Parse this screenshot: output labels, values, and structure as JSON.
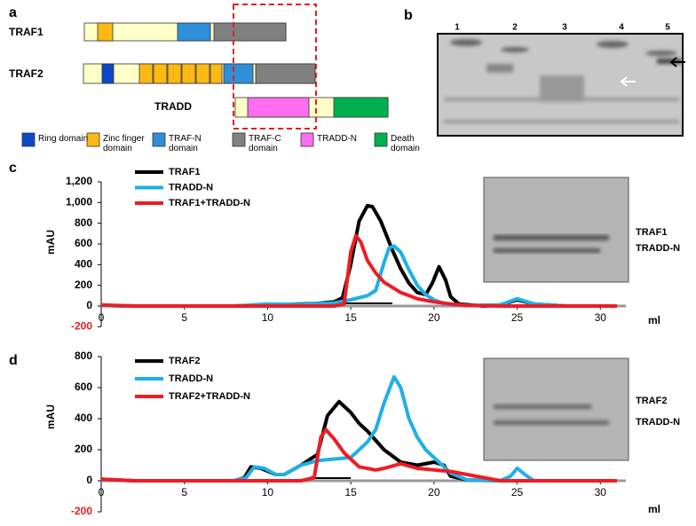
{
  "panel_a": {
    "label": "a",
    "rows": [
      "TRAF1",
      "TRAF2",
      "TRADD"
    ],
    "legend": [
      "Ring domain",
      "Zinc finger domain",
      "TRAF-N domain",
      "TRAF-C domain",
      "TRADD-N",
      "Death domain"
    ]
  },
  "panel_b": {
    "label": "b",
    "lanes": [
      1,
      2,
      3,
      4,
      5
    ]
  },
  "chart_data": [
    {
      "type": "line",
      "label": "c",
      "y_label": "mAU",
      "x_label": "ml",
      "xlim": [
        0,
        31
      ],
      "xticks": [
        0,
        5,
        10,
        15,
        20,
        25,
        30
      ],
      "ylim": [
        -200,
        1200
      ],
      "yticks": [
        -200,
        0,
        200,
        400,
        600,
        800,
        {
          "value": 1000,
          "label": "1,000"
        },
        {
          "value": 1200,
          "label": "1,200"
        }
      ],
      "gel_labels": [
        "TRAF1",
        "TRADD-N"
      ],
      "series": [
        {
          "name": "TRAF1",
          "color": "#000000",
          "x": [
            0,
            2,
            4,
            6,
            8,
            10,
            12,
            13,
            14,
            14.5,
            15,
            15.5,
            16,
            16.3,
            16.8,
            17.5,
            18,
            18.5,
            19,
            19.5,
            19.9,
            20.3,
            20.7,
            21,
            21.5,
            23,
            24,
            25,
            26,
            28,
            31
          ],
          "values": [
            5,
            0,
            0,
            0,
            0,
            10,
            20,
            25,
            40,
            80,
            400,
            820,
            970,
            960,
            820,
            540,
            360,
            220,
            130,
            110,
            220,
            380,
            250,
            90,
            20,
            0,
            10,
            60,
            20,
            0,
            0
          ]
        },
        {
          "name": "TRADD-N",
          "color": "#1fb0e6",
          "x": [
            0,
            2,
            4,
            6,
            8,
            10,
            12,
            14,
            15,
            16,
            16.5,
            17,
            17.3,
            17.6,
            18,
            18.5,
            19,
            19.5,
            20,
            20.5,
            21,
            22,
            24,
            25,
            26,
            28,
            31
          ],
          "values": [
            5,
            0,
            0,
            0,
            0,
            20,
            15,
            30,
            60,
            100,
            150,
            420,
            560,
            580,
            520,
            350,
            200,
            110,
            60,
            30,
            15,
            5,
            10,
            70,
            20,
            0,
            0
          ]
        },
        {
          "name": "TRAF1+TRADD-N",
          "color": "#ee1c24",
          "x": [
            0,
            1,
            2,
            4,
            6,
            8,
            10,
            12,
            14,
            14.6,
            15,
            15.3,
            15.6,
            16,
            16.5,
            17,
            18,
            19,
            20,
            21,
            22,
            24,
            26,
            28,
            31
          ],
          "values": [
            10,
            5,
            0,
            0,
            0,
            0,
            0,
            0,
            0,
            20,
            520,
            680,
            620,
            440,
            320,
            230,
            130,
            70,
            40,
            20,
            5,
            0,
            0,
            0,
            0
          ]
        }
      ]
    },
    {
      "type": "line",
      "label": "d",
      "y_label": "mAU",
      "x_label": "ml",
      "xlim": [
        0,
        31
      ],
      "xticks": [
        0,
        5,
        10,
        15,
        20,
        25,
        30
      ],
      "ylim": [
        -200,
        800
      ],
      "yticks": [
        -200,
        0,
        200,
        400,
        600,
        800
      ],
      "gel_labels": [
        "TRAF2",
        "TRADD-N"
      ],
      "series": [
        {
          "name": "TRAF2",
          "color": "#000000",
          "x": [
            0,
            2,
            4,
            6,
            8,
            8.6,
            9,
            9.6,
            10.5,
            11,
            12,
            13,
            13.6,
            14.3,
            15,
            15.5,
            16,
            17,
            18,
            19,
            20,
            20.6,
            21,
            22,
            24,
            26,
            28,
            31
          ],
          "values": [
            10,
            0,
            0,
            0,
            0,
            20,
            90,
            80,
            40,
            40,
            100,
            170,
            420,
            510,
            440,
            370,
            320,
            200,
            120,
            100,
            120,
            100,
            30,
            5,
            0,
            0,
            0,
            0
          ]
        },
        {
          "name": "TRADD-N",
          "color": "#1fb0e6",
          "x": [
            0,
            2,
            4,
            6,
            8,
            8.7,
            9.2,
            9.8,
            10.5,
            11,
            12,
            13,
            14,
            15,
            16,
            16.5,
            17,
            17.6,
            18,
            18.5,
            19,
            19.5,
            20.5,
            21,
            22,
            24,
            24.6,
            25,
            25.6,
            26,
            28,
            31
          ],
          "values": [
            10,
            0,
            0,
            0,
            0,
            20,
            90,
            80,
            40,
            40,
            100,
            130,
            140,
            150,
            250,
            330,
            500,
            670,
            600,
            400,
            280,
            200,
            100,
            50,
            5,
            0,
            30,
            80,
            30,
            0,
            0,
            0
          ]
        },
        {
          "name": "TRAF2+TRADD-N",
          "color": "#ee1c24",
          "x": [
            0,
            2,
            4,
            6,
            8,
            10,
            12,
            12.8,
            13.2,
            13.5,
            14,
            14.6,
            15.5,
            16.5,
            17,
            18,
            19,
            20,
            21,
            22,
            23,
            24,
            26,
            28,
            31
          ],
          "values": [
            10,
            0,
            0,
            0,
            0,
            0,
            0,
            20,
            280,
            330,
            270,
            180,
            90,
            70,
            80,
            110,
            80,
            70,
            60,
            40,
            20,
            0,
            0,
            0,
            0
          ]
        }
      ]
    }
  ]
}
